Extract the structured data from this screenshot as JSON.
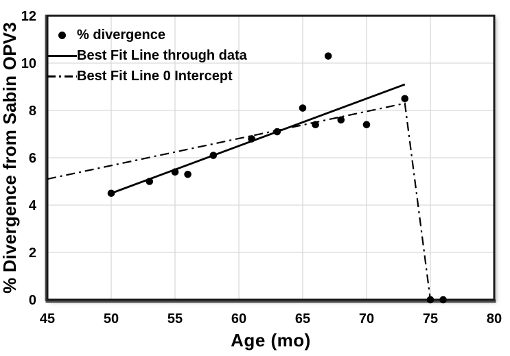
{
  "chart_data": {
    "type": "scatter",
    "xlabel": "Age (mo)",
    "ylabel": "% Divergence from Sabin OPV3",
    "xlim": [
      45,
      80
    ],
    "ylim": [
      0,
      12
    ],
    "x_ticks": [
      45,
      50,
      55,
      60,
      65,
      70,
      75,
      80
    ],
    "y_ticks": [
      0,
      2,
      4,
      6,
      8,
      10,
      12
    ],
    "grid": true,
    "legend_position": "top-left-inside",
    "series": [
      {
        "name": "% divergence",
        "type": "scatter",
        "marker": "filled-circle",
        "color": "#000000",
        "points": [
          [
            50,
            4.5
          ],
          [
            53,
            5.0
          ],
          [
            55,
            5.4
          ],
          [
            56,
            5.3
          ],
          [
            58,
            6.1
          ],
          [
            61,
            6.8
          ],
          [
            63,
            7.1
          ],
          [
            65,
            8.1
          ],
          [
            66,
            7.4
          ],
          [
            67,
            10.3
          ],
          [
            68,
            7.6
          ],
          [
            70,
            7.4
          ],
          [
            73,
            8.5
          ],
          [
            75,
            0
          ],
          [
            76,
            0
          ]
        ]
      },
      {
        "name": "Best Fit Line through data",
        "type": "line",
        "line_style": "solid",
        "color": "#000000",
        "points": [
          [
            50,
            4.5
          ],
          [
            73,
            9.1
          ]
        ]
      },
      {
        "name": "Best Fit Line 0 Intercept",
        "type": "line",
        "line_style": "dash-dot",
        "color": "#000000",
        "points": [
          [
            45,
            5.1
          ],
          [
            73,
            8.3
          ],
          [
            75,
            0
          ]
        ]
      }
    ]
  },
  "colors": {
    "background": "#ffffff",
    "text": "#000000",
    "gridline": "#d9d9d9",
    "plot_border": "#1a1a1a",
    "axis_line": "#4d4d4d",
    "series": "#000000"
  }
}
